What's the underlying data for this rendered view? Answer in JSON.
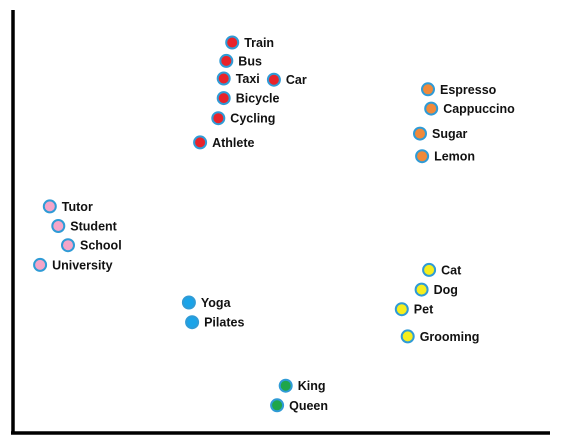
{
  "chart_data": {
    "type": "scatter",
    "title": "",
    "xlabel": "",
    "ylabel": "",
    "xlim": [
      0,
      100
    ],
    "ylim": [
      0,
      100
    ],
    "grid": false,
    "legend": "none",
    "series": [
      {
        "color": "#e8232a",
        "points": [
          {
            "label": "Train",
            "x": 40.6,
            "y": 92.7
          },
          {
            "label": "Bus",
            "x": 39.5,
            "y": 88.3
          },
          {
            "label": "Taxi",
            "x": 39.0,
            "y": 84.1
          },
          {
            "label": "Car",
            "x": 48.4,
            "y": 83.8
          },
          {
            "label": "Bicycle",
            "x": 39.0,
            "y": 79.4
          },
          {
            "label": "Cycling",
            "x": 38.0,
            "y": 74.6
          },
          {
            "label": "Athlete",
            "x": 34.6,
            "y": 68.8
          }
        ]
      },
      {
        "color": "#f0893a",
        "points": [
          {
            "label": "Espresso",
            "x": 77.2,
            "y": 81.5
          },
          {
            "label": "Cappuccino",
            "x": 77.8,
            "y": 76.9
          },
          {
            "label": "Sugar",
            "x": 75.7,
            "y": 70.9
          },
          {
            "label": "Lemon",
            "x": 76.1,
            "y": 65.5
          }
        ]
      },
      {
        "color": "#f5a5c8",
        "points": [
          {
            "label": "Tutor",
            "x": 6.5,
            "y": 53.5
          },
          {
            "label": "Student",
            "x": 8.1,
            "y": 48.8
          },
          {
            "label": "School",
            "x": 9.9,
            "y": 44.2
          },
          {
            "label": "University",
            "x": 4.7,
            "y": 39.5
          }
        ]
      },
      {
        "color": "#1aa3e8",
        "points": [
          {
            "label": "Yoga",
            "x": 32.5,
            "y": 30.5
          },
          {
            "label": "Pilates",
            "x": 33.1,
            "y": 25.8
          }
        ]
      },
      {
        "color": "#f5ee1e",
        "points": [
          {
            "label": "Cat",
            "x": 77.4,
            "y": 38.3
          },
          {
            "label": "Dog",
            "x": 76.0,
            "y": 33.6
          },
          {
            "label": "Pet",
            "x": 72.3,
            "y": 28.9
          },
          {
            "label": "Grooming",
            "x": 73.4,
            "y": 22.4
          }
        ]
      },
      {
        "color": "#1fa64a",
        "points": [
          {
            "label": "King",
            "x": 50.6,
            "y": 10.6
          },
          {
            "label": "Queen",
            "x": 49.0,
            "y": 5.9
          }
        ]
      }
    ]
  }
}
